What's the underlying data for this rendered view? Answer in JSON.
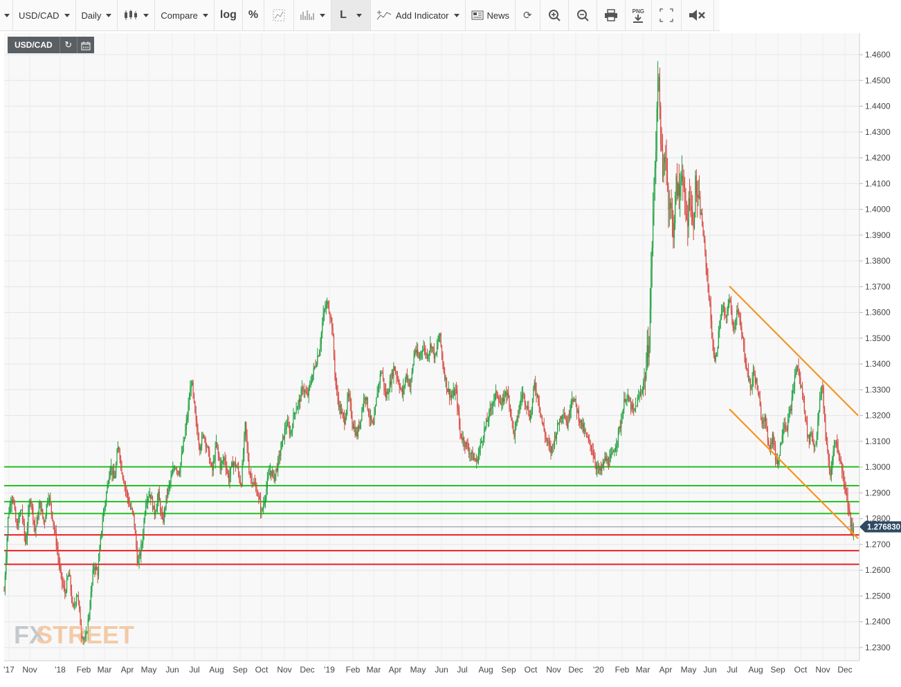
{
  "toolbar": {
    "symbol": "USD/CAD",
    "interval": "Daily",
    "compare": "Compare",
    "log": "log",
    "percent": "%",
    "chart_style": "L",
    "add_indicator": "Add Indicator",
    "news": "News",
    "png": "PNG"
  },
  "badge": {
    "symbol": "USD/CAD"
  },
  "watermark": {
    "fx": "FX",
    "street": "STREET"
  },
  "chart_data": {
    "type": "candlestick",
    "symbol": "USD/CAD",
    "interval": "Daily",
    "ylim": [
      1.225,
      1.468
    ],
    "y_ticks": [
      "1.4600",
      "1.4500",
      "1.4400",
      "1.4300",
      "1.4200",
      "1.4100",
      "1.4000",
      "1.3900",
      "1.3800",
      "1.3700",
      "1.3600",
      "1.3500",
      "1.3400",
      "1.3300",
      "1.3200",
      "1.3100",
      "1.3000",
      "1.2900",
      "1.2800",
      "1.2700",
      "1.2600",
      "1.2500",
      "1.2400",
      "1.2300"
    ],
    "x_ticks": [
      "'17",
      "Nov",
      "'18",
      "Feb",
      "Mar",
      "Apr",
      "May",
      "Jun",
      "Jul",
      "Aug",
      "Sep",
      "Oct",
      "Nov",
      "Dec",
      "'19",
      "Feb",
      "Mar",
      "Apr",
      "May",
      "Jun",
      "Jul",
      "Aug",
      "Sep",
      "Oct",
      "Nov",
      "Dec",
      "'20",
      "Feb",
      "Mar",
      "Apr",
      "May",
      "Jun",
      "Jul",
      "Aug",
      "Sep",
      "Oct",
      "Nov",
      "Dec"
    ],
    "last_price": "1.276830",
    "price_path": [
      [
        0,
        1.252
      ],
      [
        6,
        1.282
      ],
      [
        12,
        1.29
      ],
      [
        18,
        1.276
      ],
      [
        25,
        1.284
      ],
      [
        31,
        1.27
      ],
      [
        38,
        1.289
      ],
      [
        45,
        1.275
      ],
      [
        52,
        1.286
      ],
      [
        58,
        1.278
      ],
      [
        64,
        1.29
      ],
      [
        70,
        1.281
      ],
      [
        76,
        1.27
      ],
      [
        82,
        1.258
      ],
      [
        88,
        1.251
      ],
      [
        94,
        1.259
      ],
      [
        100,
        1.244
      ],
      [
        106,
        1.252
      ],
      [
        112,
        1.236
      ],
      [
        118,
        1.232
      ],
      [
        124,
        1.245
      ],
      [
        130,
        1.262
      ],
      [
        136,
        1.259
      ],
      [
        142,
        1.278
      ],
      [
        148,
        1.289
      ],
      [
        154,
        1.301
      ],
      [
        160,
        1.295
      ],
      [
        166,
        1.309
      ],
      [
        170,
        1.3
      ],
      [
        176,
        1.292
      ],
      [
        182,
        1.285
      ],
      [
        188,
        1.281
      ],
      [
        194,
        1.262
      ],
      [
        200,
        1.27
      ],
      [
        206,
        1.288
      ],
      [
        212,
        1.29
      ],
      [
        218,
        1.282
      ],
      [
        224,
        1.289
      ],
      [
        230,
        1.278
      ],
      [
        236,
        1.289
      ],
      [
        242,
        1.295
      ],
      [
        248,
        1.301
      ],
      [
        254,
        1.298
      ],
      [
        260,
        1.308
      ],
      [
        266,
        1.32
      ],
      [
        272,
        1.334
      ],
      [
        278,
        1.318
      ],
      [
        284,
        1.308
      ],
      [
        290,
        1.313
      ],
      [
        296,
        1.306
      ],
      [
        302,
        1.298
      ],
      [
        308,
        1.309
      ],
      [
        314,
        1.3
      ],
      [
        320,
        1.304
      ],
      [
        326,
        1.295
      ],
      [
        332,
        1.302
      ],
      [
        338,
        1.3
      ],
      [
        344,
        1.293
      ],
      [
        350,
        1.316
      ],
      [
        356,
        1.298
      ],
      [
        362,
        1.294
      ],
      [
        368,
        1.29
      ],
      [
        374,
        1.282
      ],
      [
        380,
        1.291
      ],
      [
        386,
        1.299
      ],
      [
        392,
        1.296
      ],
      [
        398,
        1.302
      ],
      [
        404,
        1.31
      ],
      [
        410,
        1.317
      ],
      [
        416,
        1.313
      ],
      [
        422,
        1.322
      ],
      [
        428,
        1.325
      ],
      [
        434,
        1.331
      ],
      [
        440,
        1.327
      ],
      [
        446,
        1.334
      ],
      [
        452,
        1.34
      ],
      [
        458,
        1.346
      ],
      [
        464,
        1.36
      ],
      [
        470,
        1.364
      ],
      [
        476,
        1.355
      ],
      [
        482,
        1.33
      ],
      [
        488,
        1.322
      ],
      [
        494,
        1.318
      ],
      [
        500,
        1.328
      ],
      [
        506,
        1.317
      ],
      [
        512,
        1.312
      ],
      [
        518,
        1.32
      ],
      [
        524,
        1.329
      ],
      [
        530,
        1.32
      ],
      [
        536,
        1.315
      ],
      [
        542,
        1.33
      ],
      [
        548,
        1.338
      ],
      [
        554,
        1.327
      ],
      [
        560,
        1.332
      ],
      [
        566,
        1.339
      ],
      [
        572,
        1.334
      ],
      [
        578,
        1.328
      ],
      [
        584,
        1.336
      ],
      [
        590,
        1.331
      ],
      [
        596,
        1.346
      ],
      [
        602,
        1.342
      ],
      [
        608,
        1.347
      ],
      [
        614,
        1.343
      ],
      [
        620,
        1.348
      ],
      [
        626,
        1.342
      ],
      [
        632,
        1.352
      ],
      [
        638,
        1.338
      ],
      [
        644,
        1.33
      ],
      [
        650,
        1.327
      ],
      [
        656,
        1.33
      ],
      [
        662,
        1.313
      ],
      [
        668,
        1.31
      ],
      [
        674,
        1.307
      ],
      [
        680,
        1.304
      ],
      [
        686,
        1.302
      ],
      [
        692,
        1.309
      ],
      [
        698,
        1.315
      ],
      [
        704,
        1.32
      ],
      [
        710,
        1.326
      ],
      [
        716,
        1.329
      ],
      [
        722,
        1.323
      ],
      [
        728,
        1.33
      ],
      [
        734,
        1.325
      ],
      [
        740,
        1.312
      ],
      [
        746,
        1.32
      ],
      [
        752,
        1.329
      ],
      [
        758,
        1.325
      ],
      [
        764,
        1.319
      ],
      [
        770,
        1.332
      ],
      [
        776,
        1.326
      ],
      [
        782,
        1.316
      ],
      [
        788,
        1.31
      ],
      [
        794,
        1.306
      ],
      [
        800,
        1.312
      ],
      [
        806,
        1.318
      ],
      [
        812,
        1.322
      ],
      [
        818,
        1.316
      ],
      [
        824,
        1.328
      ],
      [
        830,
        1.324
      ],
      [
        836,
        1.318
      ],
      [
        842,
        1.314
      ],
      [
        848,
        1.31
      ],
      [
        854,
        1.307
      ],
      [
        860,
        1.3
      ],
      [
        866,
        1.298
      ],
      [
        872,
        1.303
      ],
      [
        878,
        1.302
      ],
      [
        884,
        1.305
      ],
      [
        890,
        1.311
      ],
      [
        896,
        1.318
      ],
      [
        902,
        1.328
      ],
      [
        908,
        1.325
      ],
      [
        914,
        1.321
      ],
      [
        920,
        1.326
      ],
      [
        926,
        1.33
      ],
      [
        932,
        1.338
      ],
      [
        937,
        1.352
      ],
      [
        940,
        1.38
      ],
      [
        943,
        1.405
      ],
      [
        946,
        1.42
      ],
      [
        949,
        1.455
      ],
      [
        952,
        1.44
      ],
      [
        956,
        1.41
      ],
      [
        960,
        1.425
      ],
      [
        964,
        1.405
      ],
      [
        968,
        1.4
      ],
      [
        972,
        1.392
      ],
      [
        976,
        1.41
      ],
      [
        980,
        1.405
      ],
      [
        984,
        1.418
      ],
      [
        988,
        1.4
      ],
      [
        992,
        1.395
      ],
      [
        996,
        1.408
      ],
      [
        1000,
        1.392
      ],
      [
        1004,
        1.41
      ],
      [
        1008,
        1.402
      ],
      [
        1012,
        1.398
      ],
      [
        1016,
        1.388
      ],
      [
        1020,
        1.376
      ],
      [
        1024,
        1.365
      ],
      [
        1028,
        1.35
      ],
      [
        1032,
        1.34
      ],
      [
        1036,
        1.348
      ],
      [
        1040,
        1.358
      ],
      [
        1044,
        1.362
      ],
      [
        1048,
        1.356
      ],
      [
        1052,
        1.366
      ],
      [
        1056,
        1.36
      ],
      [
        1060,
        1.353
      ],
      [
        1064,
        1.362
      ],
      [
        1068,
        1.356
      ],
      [
        1072,
        1.35
      ],
      [
        1076,
        1.342
      ],
      [
        1080,
        1.336
      ],
      [
        1084,
        1.33
      ],
      [
        1088,
        1.337
      ],
      [
        1092,
        1.333
      ],
      [
        1096,
        1.326
      ],
      [
        1100,
        1.318
      ],
      [
        1104,
        1.32
      ],
      [
        1108,
        1.312
      ],
      [
        1112,
        1.308
      ],
      [
        1116,
        1.312
      ],
      [
        1120,
        1.304
      ],
      [
        1124,
        1.302
      ],
      [
        1128,
        1.31
      ],
      [
        1132,
        1.318
      ],
      [
        1136,
        1.315
      ],
      [
        1140,
        1.32
      ],
      [
        1144,
        1.326
      ],
      [
        1148,
        1.335
      ],
      [
        1152,
        1.34
      ],
      [
        1156,
        1.332
      ],
      [
        1160,
        1.328
      ],
      [
        1164,
        1.318
      ],
      [
        1168,
        1.31
      ],
      [
        1172,
        1.314
      ],
      [
        1176,
        1.308
      ],
      [
        1180,
        1.312
      ],
      [
        1184,
        1.325
      ],
      [
        1188,
        1.333
      ],
      [
        1192,
        1.315
      ],
      [
        1196,
        1.304
      ],
      [
        1200,
        1.296
      ],
      [
        1204,
        1.308
      ],
      [
        1208,
        1.31
      ],
      [
        1212,
        1.305
      ],
      [
        1216,
        1.3
      ],
      [
        1220,
        1.294
      ],
      [
        1224,
        1.288
      ],
      [
        1228,
        1.28
      ],
      [
        1232,
        1.274
      ],
      [
        1234,
        1.2768
      ]
    ],
    "horizontal_levels": [
      {
        "price": 1.3001,
        "color": "#22c11f"
      },
      {
        "price": 1.2928,
        "color": "#22c11f"
      },
      {
        "price": 1.2866,
        "color": "#22c11f"
      },
      {
        "price": 1.282,
        "color": "#22c11f"
      },
      {
        "price": 1.2737,
        "color": "#ee1d23"
      },
      {
        "price": 1.2676,
        "color": "#ee1d23"
      },
      {
        "price": 1.2623,
        "color": "#ee1d23"
      }
    ],
    "channel_lines": [
      {
        "from": [
          1054,
          1.3702
        ],
        "to": [
          1240,
          1.32
        ],
        "color": "#f7941d"
      },
      {
        "from": [
          1054,
          1.3225
        ],
        "to": [
          1240,
          1.2723
        ],
        "color": "#f7941d"
      }
    ],
    "colors": {
      "up": "#1a9f3c",
      "down": "#d6453d",
      "last_price_bg": "#2e4a62",
      "last_price_line": "#8894a0"
    }
  }
}
